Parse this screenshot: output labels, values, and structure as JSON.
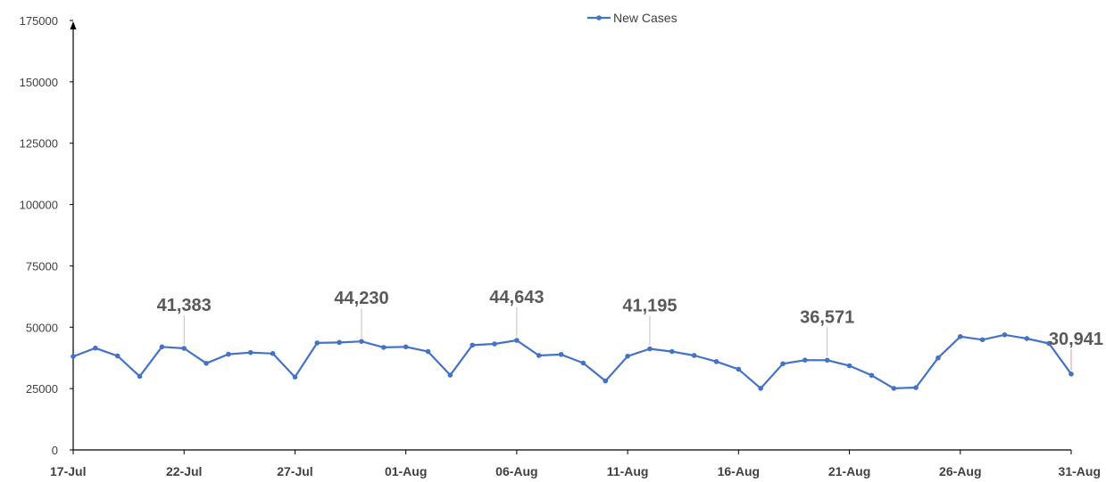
{
  "chart_data": {
    "type": "line",
    "title": "",
    "xlabel": "",
    "ylabel": "",
    "ylim": [
      0,
      175000
    ],
    "yticks": [
      0,
      25000,
      50000,
      75000,
      100000,
      125000,
      150000,
      175000
    ],
    "x_tick_labels": [
      "17-Jul",
      "22-Jul",
      "27-Jul",
      "01-Aug",
      "06-Aug",
      "11-Aug",
      "16-Aug",
      "21-Aug",
      "26-Aug",
      "31-Aug"
    ],
    "legend": {
      "position": "top-center",
      "entries": [
        "New Cases"
      ]
    },
    "grid": false,
    "series_color": "#4472C4",
    "series": [
      {
        "name": "New Cases",
        "x": [
          "17-Jul",
          "18-Jul",
          "19-Jul",
          "20-Jul",
          "21-Jul",
          "22-Jul",
          "23-Jul",
          "24-Jul",
          "25-Jul",
          "26-Jul",
          "27-Jul",
          "28-Jul",
          "29-Jul",
          "30-Jul",
          "31-Jul",
          "01-Aug",
          "02-Aug",
          "03-Aug",
          "04-Aug",
          "05-Aug",
          "06-Aug",
          "07-Aug",
          "08-Aug",
          "09-Aug",
          "10-Aug",
          "11-Aug",
          "12-Aug",
          "13-Aug",
          "14-Aug",
          "15-Aug",
          "16-Aug",
          "17-Aug",
          "18-Aug",
          "19-Aug",
          "20-Aug",
          "21-Aug",
          "22-Aug",
          "23-Aug",
          "24-Aug",
          "25-Aug",
          "26-Aug",
          "27-Aug",
          "28-Aug",
          "29-Aug",
          "30-Aug",
          "31-Aug"
        ],
        "values": [
          38100,
          41500,
          38300,
          30000,
          42000,
          41383,
          35300,
          39000,
          39700,
          39300,
          29700,
          43600,
          43800,
          44230,
          41800,
          42000,
          40100,
          30500,
          42700,
          43200,
          44643,
          38500,
          38900,
          35400,
          28100,
          38200,
          41195,
          40100,
          38500,
          36000,
          32900,
          25100,
          35100,
          36600,
          36571,
          34300,
          30400,
          25100,
          25400,
          37500,
          46200,
          44900,
          46900,
          45400,
          43400,
          30941
        ]
      }
    ],
    "annotations": [
      {
        "text": "41,383",
        "x": "22-Jul",
        "y": 41383
      },
      {
        "text": "44,230",
        "x": "30-Jul",
        "y": 44230
      },
      {
        "text": "44,643",
        "x": "06-Aug",
        "y": 44643
      },
      {
        "text": "41,195",
        "x": "12-Aug",
        "y": 41195
      },
      {
        "text": "36,571",
        "x": "20-Aug",
        "y": 36571
      },
      {
        "text": "30,941",
        "x": "31-Aug",
        "y": 30941
      }
    ]
  }
}
